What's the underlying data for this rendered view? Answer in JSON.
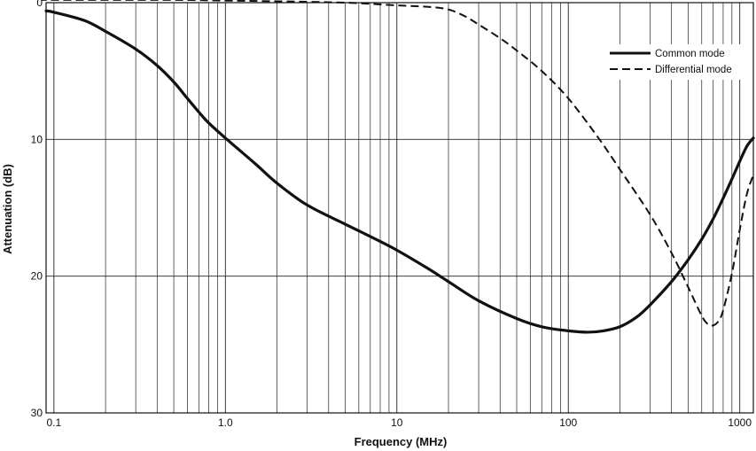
{
  "chart_data": {
    "type": "line",
    "title": "",
    "xlabel": "Frequency (MHz)",
    "ylabel": "Attenuation (dB)",
    "x_scale": "log",
    "y_inverted": true,
    "xlim": [
      0.09,
      1200
    ],
    "ylim": [
      0,
      30
    ],
    "x_ticks": [
      0.1,
      1.0,
      10,
      100,
      1000
    ],
    "x_tick_labels": [
      "0.1",
      "1.0",
      "10",
      "100",
      "1000"
    ],
    "y_ticks": [
      0,
      10,
      20,
      30
    ],
    "y_tick_labels": [
      "0",
      "10",
      "20",
      "30"
    ],
    "grid": true,
    "legend_position": "top-right",
    "series": [
      {
        "name": "Common mode",
        "style": "solid",
        "x": [
          0.09,
          0.1,
          0.15,
          0.2,
          0.3,
          0.4,
          0.5,
          0.6,
          0.7,
          0.8,
          1.0,
          1.5,
          2,
          3,
          5,
          7,
          10,
          15,
          20,
          30,
          50,
          70,
          100,
          130,
          160,
          200,
          250,
          300,
          400,
          500,
          600,
          700,
          800,
          900,
          1000,
          1100,
          1200
        ],
        "y": [
          0.6,
          0.7,
          1.3,
          2.1,
          3.4,
          4.6,
          5.8,
          7.0,
          8.0,
          8.8,
          9.9,
          11.8,
          13.2,
          14.8,
          16.2,
          17.1,
          18.1,
          19.4,
          20.4,
          21.8,
          23.1,
          23.7,
          24.0,
          24.1,
          24.0,
          23.7,
          23.0,
          22.1,
          20.4,
          18.8,
          17.3,
          15.8,
          14.3,
          12.9,
          11.6,
          10.5,
          9.9
        ]
      },
      {
        "name": "Differential mode",
        "style": "dashed",
        "x": [
          0.09,
          0.1,
          0.5,
          1,
          2,
          5,
          10,
          15,
          20,
          25,
          30,
          40,
          50,
          70,
          100,
          150,
          200,
          300,
          400,
          500,
          600,
          650,
          700,
          750,
          800,
          900,
          1000,
          1100,
          1200
        ],
        "y": [
          -0.2,
          -0.2,
          -0.2,
          -0.15,
          -0.1,
          0.0,
          0.2,
          0.3,
          0.5,
          1.0,
          1.6,
          2.6,
          3.5,
          5.0,
          7.0,
          9.9,
          12.2,
          15.5,
          18.3,
          20.8,
          22.9,
          23.5,
          23.6,
          23.3,
          22.5,
          19.8,
          16.6,
          14.0,
          12.6
        ]
      }
    ]
  }
}
